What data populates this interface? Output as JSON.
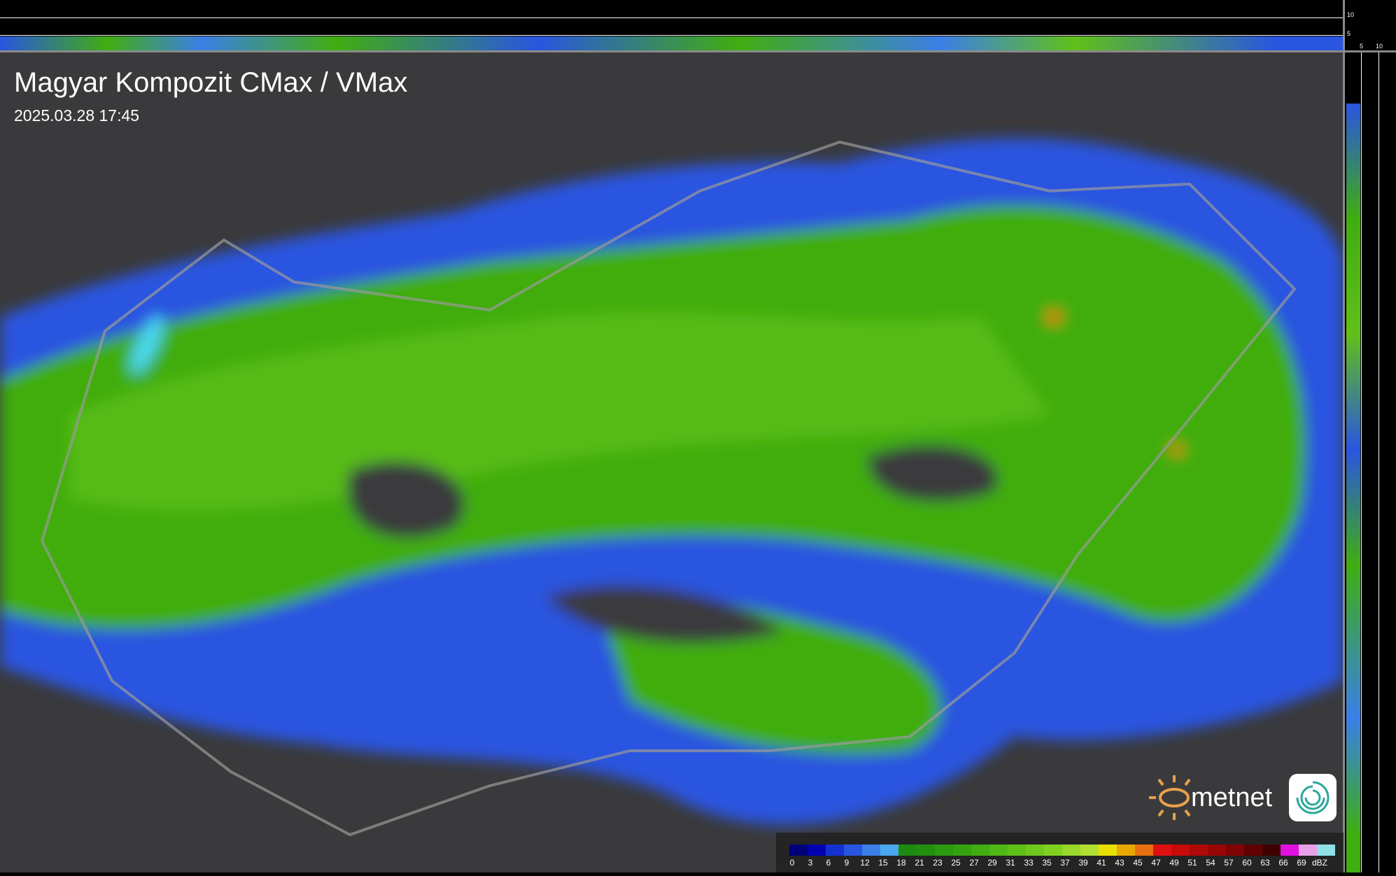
{
  "header": {
    "title": "Magyar Kompozit CMax / VMax",
    "timestamp": "2025.03.28 17:45"
  },
  "profile_ticks": {
    "top": [
      "10",
      "5"
    ],
    "right": [
      "5",
      "10"
    ]
  },
  "legend": {
    "labels": [
      "0",
      "3",
      "6",
      "9",
      "12",
      "15",
      "18",
      "21",
      "23",
      "25",
      "27",
      "29",
      "31",
      "33",
      "35",
      "37",
      "39",
      "41",
      "43",
      "45",
      "47",
      "49",
      "51",
      "54",
      "57",
      "60",
      "63",
      "66",
      "69",
      "dBZ"
    ],
    "colors": [
      "#00007a",
      "#0000b0",
      "#1530d0",
      "#2a55e0",
      "#3b7fe8",
      "#4aa8ee",
      "#1f8a10",
      "#228f0e",
      "#2a9a0e",
      "#33a30e",
      "#40ad10",
      "#50b814",
      "#60c018",
      "#70c81c",
      "#80d020",
      "#98d828",
      "#b0e030",
      "#e8e000",
      "#e8a800",
      "#e87010",
      "#e01010",
      "#c80a0a",
      "#b00808",
      "#980606",
      "#800404",
      "#600202",
      "#400000",
      "#e010e0",
      "#e8a0e8",
      "#90e0e8"
    ],
    "unit": "dBZ"
  },
  "logos": {
    "brand": "metnet"
  },
  "colors": {
    "background": "#3a3a3c",
    "weak_echo": "#2a55e0",
    "moderate_echo": "#40ad10",
    "strong_echo": "#e87010"
  }
}
